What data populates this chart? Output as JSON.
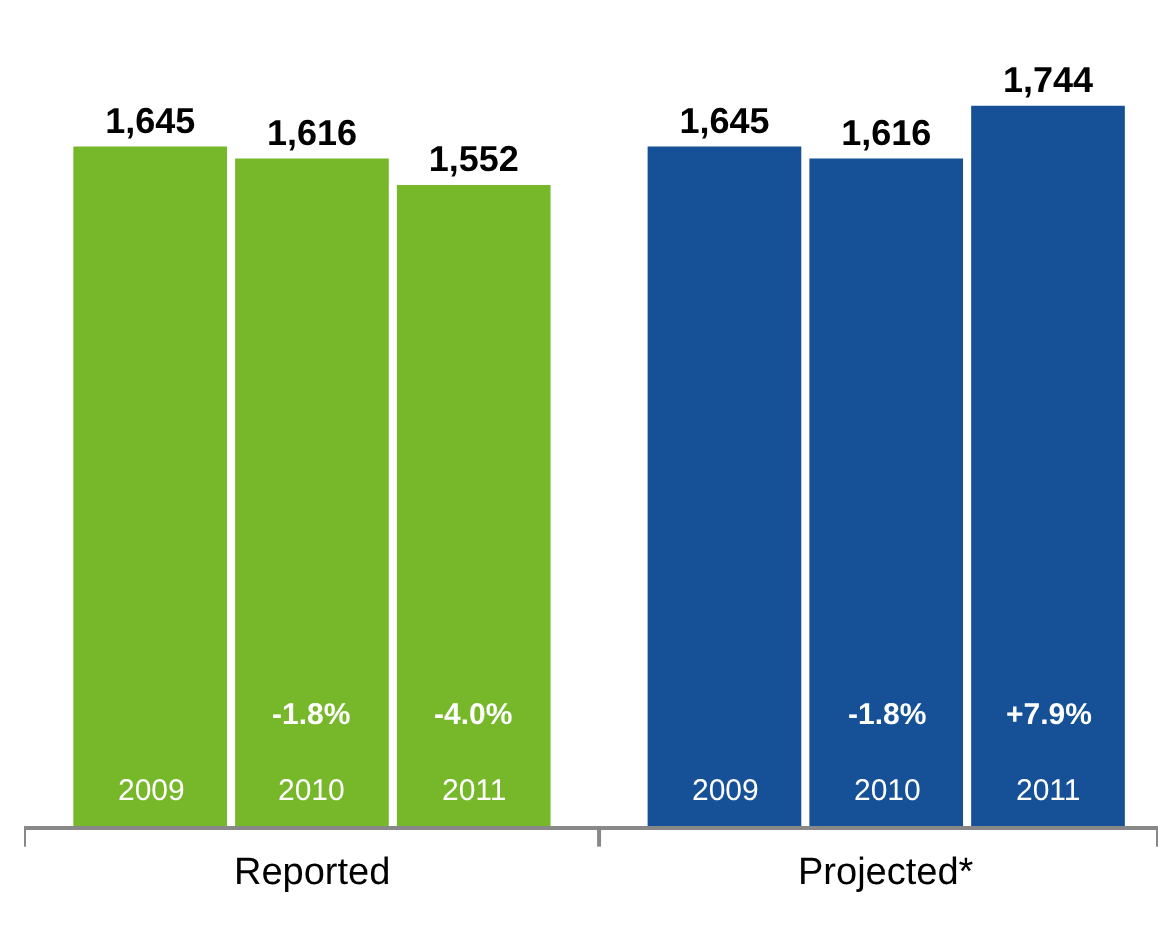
{
  "chart_data": {
    "type": "bar",
    "categories": [
      "2009",
      "2010",
      "2011",
      "2009",
      "2010",
      "2011"
    ],
    "series": [
      {
        "name": "Reported",
        "color": "#77b82a",
        "values": [
          1645,
          1616,
          1552,
          null,
          null,
          null
        ],
        "value_labels": [
          "1,645",
          "1,616",
          "1,552",
          null,
          null,
          null
        ]
      },
      {
        "name": "Projected*",
        "color": "#165096",
        "values": [
          null,
          null,
          null,
          1645,
          1616,
          1744
        ],
        "value_labels": [
          null,
          null,
          null,
          "1,645",
          "1,616",
          "1,744"
        ]
      }
    ],
    "annotations": [
      "-1.8%",
      "-4.0%",
      "-1.8%",
      "+7.9%"
    ],
    "tick_labels": "x",
    "grid": false,
    "legend": false
  }
}
